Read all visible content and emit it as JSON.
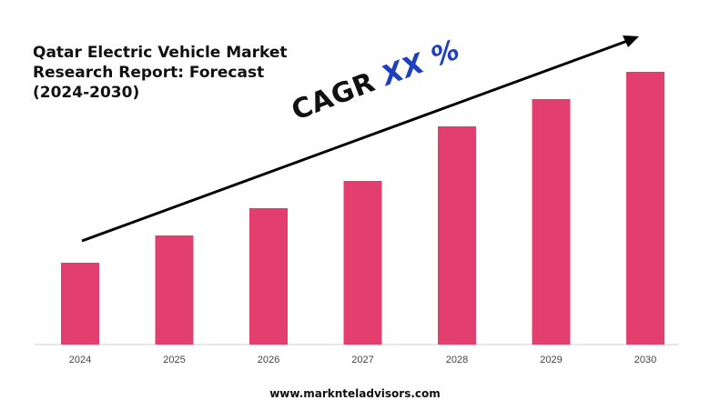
{
  "chart_data": {
    "type": "bar",
    "title_lines": [
      "Qatar Electric Vehicle Market",
      "Research Report: Forecast",
      "(2024-2030)"
    ],
    "categories": [
      "2024",
      "2025",
      "2026",
      "2027",
      "2028",
      "2029",
      "2030"
    ],
    "values": [
      30,
      40,
      50,
      60,
      80,
      90,
      100
    ],
    "ylim": [
      0,
      100
    ],
    "xlabel": "",
    "ylabel": "",
    "grid": false,
    "bar_color": "#e23f6f",
    "annotation": {
      "prefix": "CAGR",
      "value": "XX %",
      "prefix_color": "#111111",
      "value_color": "#1f3fbf"
    }
  },
  "footer": {
    "website": "www.marknteladvisors.com"
  }
}
